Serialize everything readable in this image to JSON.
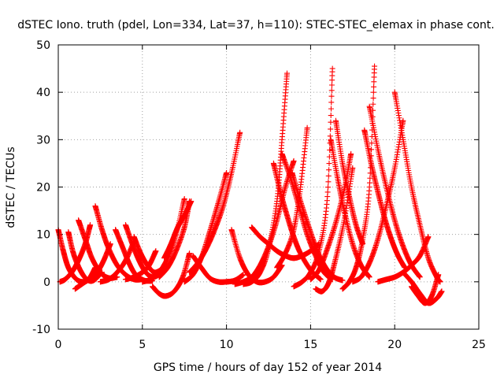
{
  "chart_data": {
    "type": "scatter",
    "title": "dSTEC Iono. truth (pdel, Lon=334, Lat=37, h=110): STEC-STEC_elemax in phase cont.",
    "xlabel": "GPS time / hours of day 152 of year 2014",
    "ylabel": "dSTEC  / TECUs",
    "xlim": [
      0,
      25
    ],
    "ylim": [
      -10,
      50
    ],
    "xticks": [
      0,
      5,
      10,
      15,
      20,
      25
    ],
    "yticks": [
      -10,
      0,
      10,
      20,
      30,
      40,
      50
    ],
    "grid": true,
    "marker": "+",
    "color": "#ff0000",
    "arcs": [
      {
        "x": [
          0.0,
          0.3,
          0.6,
          1.0,
          1.4,
          1.8,
          2.2
        ],
        "y": [
          11.0,
          6.5,
          3.0,
          0.8,
          0.0,
          0.5,
          3.0
        ]
      },
      {
        "x": [
          0.1,
          0.4,
          0.8,
          1.2,
          1.6,
          1.9
        ],
        "y": [
          0.0,
          0.5,
          2.0,
          4.5,
          8.0,
          12.0
        ]
      },
      {
        "x": [
          0.6,
          0.9,
          1.3,
          1.7,
          2.1,
          2.6
        ],
        "y": [
          10.5,
          6.0,
          2.5,
          0.5,
          0.3,
          2.0
        ]
      },
      {
        "x": [
          1.2,
          1.6,
          2.0,
          2.5,
          3.0,
          3.5
        ],
        "y": [
          13.0,
          9.0,
          5.0,
          2.0,
          0.8,
          1.0
        ]
      },
      {
        "x": [
          1.0,
          1.4,
          1.8,
          2.3,
          2.7,
          3.1
        ],
        "y": [
          -1.5,
          -0.5,
          0.5,
          2.0,
          4.5,
          8.0
        ]
      },
      {
        "x": [
          2.2,
          2.6,
          3.0,
          3.5,
          4.0,
          4.5,
          5.0
        ],
        "y": [
          16.0,
          11.0,
          7.0,
          3.5,
          1.5,
          0.5,
          0.5
        ]
      },
      {
        "x": [
          2.5,
          3.0,
          3.5,
          4.0,
          4.5
        ],
        "y": [
          0.0,
          0.5,
          2.0,
          4.5,
          8.5
        ]
      },
      {
        "x": [
          3.4,
          3.8,
          4.2,
          4.6,
          5.1,
          5.6
        ],
        "y": [
          11.0,
          7.5,
          4.0,
          1.5,
          0.3,
          0.2
        ]
      },
      {
        "x": [
          4.0,
          4.4,
          4.8,
          5.2,
          5.6,
          6.0
        ],
        "y": [
          12.0,
          8.0,
          4.5,
          2.0,
          1.0,
          1.5
        ]
      },
      {
        "x": [
          4.5,
          4.9,
          5.3,
          5.7,
          6.1
        ],
        "y": [
          9.5,
          6.0,
          3.5,
          2.0,
          2.5
        ]
      },
      {
        "x": [
          4.0,
          4.5,
          5.0,
          5.4,
          5.8
        ],
        "y": [
          0.5,
          1.0,
          2.0,
          3.5,
          6.5
        ]
      },
      {
        "x": [
          5.0,
          5.5,
          6.0,
          6.5,
          7.0,
          7.5
        ],
        "y": [
          0.0,
          0.5,
          2.0,
          5.0,
          10.0,
          17.5
        ]
      },
      {
        "x": [
          5.6,
          6.0,
          6.4,
          6.9,
          7.4,
          7.8
        ],
        "y": [
          -1.0,
          -2.5,
          -3.0,
          -2.0,
          1.0,
          6.0
        ]
      },
      {
        "x": [
          6.0,
          6.5,
          7.0,
          7.5,
          7.8
        ],
        "y": [
          1.0,
          3.0,
          6.5,
          11.5,
          17.0
        ]
      },
      {
        "x": [
          6.3,
          6.7,
          7.1,
          7.5,
          7.9
        ],
        "y": [
          5.0,
          8.0,
          11.5,
          14.0,
          17.0
        ]
      },
      {
        "x": [
          7.5,
          8.0,
          8.5,
          9.0,
          9.5,
          10.0
        ],
        "y": [
          0.0,
          1.5,
          5.0,
          10.5,
          16.5,
          23.0
        ]
      },
      {
        "x": [
          7.8,
          8.3,
          8.8,
          9.3,
          9.8,
          10.3,
          10.8
        ],
        "y": [
          2.0,
          4.0,
          7.0,
          11.0,
          16.0,
          23.0,
          31.5
        ]
      },
      {
        "x": [
          8.0,
          8.5,
          9.0,
          9.5,
          10.0,
          10.5,
          11.0
        ],
        "y": [
          5.5,
          3.0,
          0.8,
          0.0,
          0.0,
          0.3,
          1.5
        ]
      },
      {
        "x": [
          10.3,
          10.8,
          11.3,
          11.8,
          12.3,
          12.8,
          13.3
        ],
        "y": [
          11.0,
          5.0,
          1.5,
          0.0,
          0.0,
          1.0,
          3.5
        ]
      },
      {
        "x": [
          10.5,
          11.0,
          11.5,
          12.0,
          12.5,
          13.0,
          13.5,
          14.0
        ],
        "y": [
          -0.5,
          0.0,
          1.0,
          3.5,
          7.5,
          13.0,
          20.0,
          25.5
        ]
      },
      {
        "x": [
          11.5,
          12.0,
          12.5,
          13.0,
          13.5,
          14.0,
          14.5,
          15.0,
          15.5
        ],
        "y": [
          11.5,
          9.5,
          8.0,
          6.5,
          5.5,
          5.0,
          5.5,
          6.5,
          8.0
        ]
      },
      {
        "x": [
          11.0,
          11.5,
          12.0,
          12.5,
          13.0,
          13.3,
          13.6
        ],
        "y": [
          -0.5,
          0.0,
          2.0,
          7.0,
          17.0,
          30.0,
          44.0
        ]
      },
      {
        "x": [
          12.8,
          13.2,
          13.6,
          14.0,
          14.4,
          15.0,
          15.6
        ],
        "y": [
          25.0,
          19.0,
          14.0,
          9.5,
          6.0,
          2.5,
          0.5
        ]
      },
      {
        "x": [
          13.0,
          13.5,
          14.0,
          14.4,
          14.8
        ],
        "y": [
          3.0,
          6.0,
          11.0,
          20.0,
          32.5
        ]
      },
      {
        "x": [
          13.3,
          13.8,
          14.3,
          14.8,
          15.3,
          15.8,
          16.3
        ],
        "y": [
          27.0,
          22.0,
          16.0,
          10.0,
          5.5,
          2.0,
          0.5
        ]
      },
      {
        "x": [
          13.9,
          14.4,
          14.9,
          15.4,
          15.9,
          16.4,
          16.9
        ],
        "y": [
          23.0,
          17.0,
          11.5,
          6.5,
          3.0,
          1.0,
          0.3
        ]
      },
      {
        "x": [
          14.0,
          14.5,
          15.0,
          15.5,
          16.0,
          16.3
        ],
        "y": [
          -1.0,
          0.0,
          2.0,
          6.5,
          18.0,
          45.0
        ]
      },
      {
        "x": [
          15.0,
          15.5,
          16.0,
          16.5,
          17.0,
          17.4
        ],
        "y": [
          0.5,
          2.5,
          7.0,
          12.5,
          19.5,
          27.0
        ]
      },
      {
        "x": [
          15.3,
          15.7,
          16.1,
          16.5,
          17.0,
          17.5
        ],
        "y": [
          -1.5,
          -2.0,
          0.0,
          5.0,
          13.0,
          24.0
        ]
      },
      {
        "x": [
          16.2,
          16.6,
          17.0,
          17.5,
          18.0,
          18.5
        ],
        "y": [
          30.0,
          22.0,
          15.0,
          8.0,
          3.5,
          1.0
        ]
      },
      {
        "x": [
          16.5,
          16.9,
          17.3,
          17.7,
          18.1
        ],
        "y": [
          34.0,
          25.0,
          18.0,
          12.0,
          8.0
        ]
      },
      {
        "x": [
          16.9,
          17.3,
          17.7,
          18.1,
          18.5,
          18.8
        ],
        "y": [
          -1.5,
          0.0,
          3.0,
          9.0,
          20.0,
          45.5
        ]
      },
      {
        "x": [
          17.5,
          18.0,
          18.5,
          19.0,
          19.5,
          20.0,
          20.5
        ],
        "y": [
          0.0,
          1.0,
          4.0,
          9.0,
          16.0,
          24.0,
          34.0
        ]
      },
      {
        "x": [
          18.2,
          18.6,
          19.0,
          19.4,
          19.8,
          20.2,
          20.6
        ],
        "y": [
          32.0,
          25.0,
          19.0,
          13.5,
          9.0,
          5.5,
          3.0
        ]
      },
      {
        "x": [
          18.5,
          19.0,
          19.5,
          20.0,
          20.5,
          21.0,
          21.5
        ],
        "y": [
          37.0,
          28.0,
          20.0,
          13.0,
          7.5,
          3.5,
          1.0
        ]
      },
      {
        "x": [
          20.0,
          20.5,
          21.0,
          21.5,
          22.0,
          22.5,
          22.7
        ],
        "y": [
          40.0,
          30.0,
          20.0,
          12.0,
          5.0,
          1.0,
          0.0
        ]
      },
      {
        "x": [
          19.0,
          19.5,
          20.0,
          20.5,
          21.0,
          21.5,
          22.0
        ],
        "y": [
          0.0,
          0.5,
          1.0,
          2.0,
          3.5,
          5.5,
          9.5
        ]
      },
      {
        "x": [
          20.5,
          21.0,
          21.5,
          22.0,
          22.5,
          22.8
        ],
        "y": [
          2.0,
          0.0,
          -2.5,
          -4.5,
          -3.5,
          -2.0
        ]
      },
      {
        "x": [
          21.0,
          21.4,
          21.8,
          22.2,
          22.6
        ],
        "y": [
          -1.0,
          -3.0,
          -4.5,
          -3.0,
          1.5
        ]
      }
    ]
  }
}
